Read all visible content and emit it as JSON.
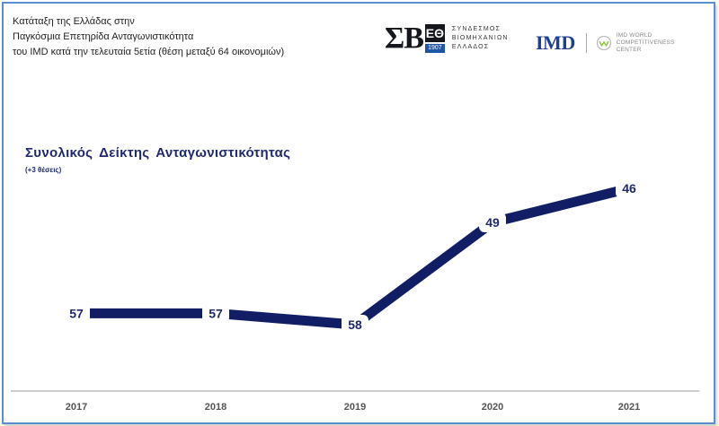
{
  "header": {
    "caption_lines": [
      "Κατάταξη της Ελλάδας στην",
      "Παγκόσμια Επετηρίδα Ανταγωνιστικότητα",
      "του IMD κατά την τελευταία 5ετία (θέση μεταξύ 64 οικονομιών)"
    ]
  },
  "logos": {
    "sev_mark": "ΣΒ",
    "sev_box": "ΕΘ",
    "sev_year": "1907",
    "sev_text": [
      "ΣΥΝΔΕΣΜΟΣ",
      "ΒΙΟΜΗΧΑΝΙΩΝ",
      "ΕΛΛΑΔΟΣ"
    ],
    "imd": "IMD",
    "wcc_text": [
      "IMD WORLD",
      "COMPETITIVENESS",
      "CENTER"
    ]
  },
  "colors": {
    "line": "#111e66",
    "label": "#1f2a6e",
    "axis": "#9a9a9a",
    "frame": "#5b8fd0"
  },
  "chart_data": {
    "type": "line",
    "title": "Συνολικός Δείκτης Ανταγωνιστικότητας",
    "subtitle": "(+3 θέσεις)",
    "categories": [
      "2017",
      "2018",
      "2019",
      "2020",
      "2021"
    ],
    "values": [
      57,
      57,
      58,
      49,
      46
    ],
    "data_labels": [
      "57",
      "57",
      "58",
      "49",
      "46"
    ],
    "y_inverted": true,
    "ylim": [
      64,
      40
    ],
    "grid": false,
    "xlabel": "",
    "ylabel": ""
  }
}
